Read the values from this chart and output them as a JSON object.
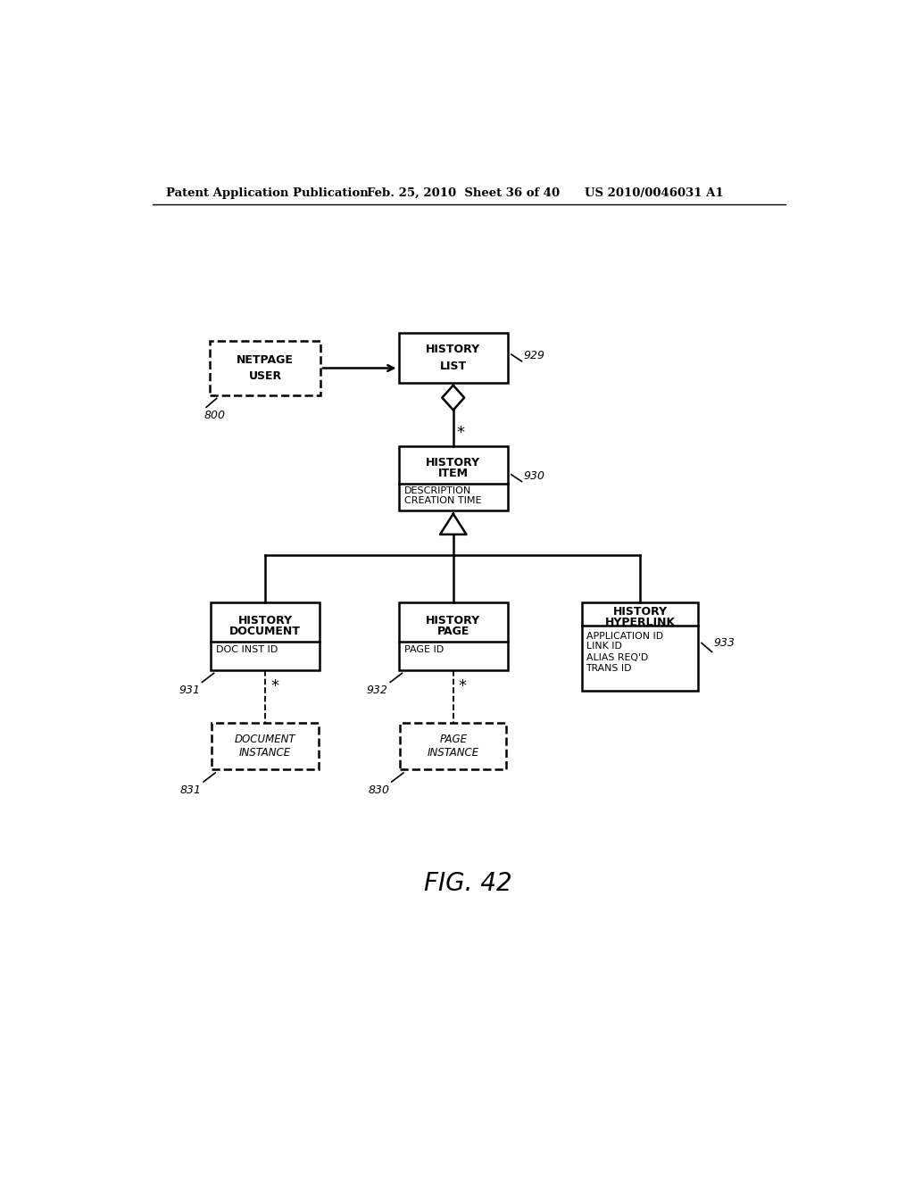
{
  "bg_color": "#ffffff",
  "header_left": "Patent Application Publication",
  "header_mid": "Feb. 25, 2010  Sheet 36 of 40",
  "header_right": "US 2010/0046031 A1",
  "fig_label": "FIG. 42"
}
